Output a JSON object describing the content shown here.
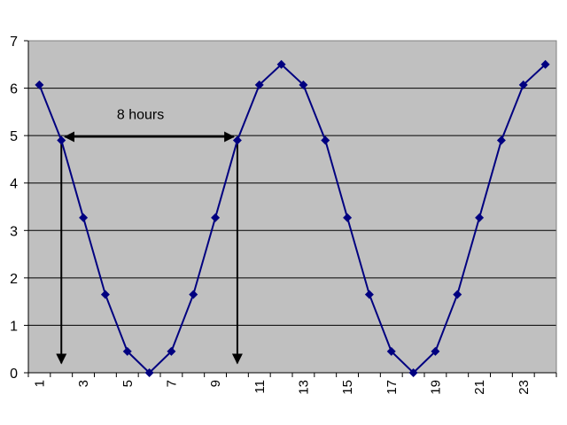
{
  "chart_data": {
    "type": "line",
    "title": "",
    "xlabel": "",
    "ylabel": "",
    "x": [
      1,
      2,
      3,
      4,
      5,
      6,
      7,
      8,
      9,
      10,
      11,
      12,
      13,
      14,
      15,
      16,
      17,
      18,
      19,
      20,
      21,
      22,
      23,
      24
    ],
    "series": [
      {
        "values": [
          6.07,
          4.9,
          3.27,
          1.65,
          0.45,
          0.0,
          0.45,
          1.65,
          3.27,
          4.9,
          6.07,
          6.5,
          6.07,
          4.9,
          3.27,
          1.65,
          0.45,
          0.0,
          0.45,
          1.65,
          3.27,
          4.9,
          6.07,
          6.5
        ]
      }
    ],
    "xlim": [
      0.5,
      24.5
    ],
    "ylim": [
      0,
      7
    ],
    "y_ticks": [
      "0",
      "1",
      "2",
      "3",
      "4",
      "5",
      "6",
      "7"
    ],
    "x_ticks": [
      "1",
      "3",
      "5",
      "7",
      "9",
      "11",
      "13",
      "15",
      "17",
      "19",
      "21",
      "23"
    ],
    "x_tick_values": [
      1,
      3,
      5,
      7,
      9,
      11,
      13,
      15,
      17,
      19,
      21,
      23
    ],
    "grid": "horizontal",
    "legend": "none",
    "annotation": {
      "text": "8 hours",
      "from_x": 2,
      "to_x": 10,
      "at_y": 4.9,
      "drop_arrows_x": [
        2,
        10
      ],
      "drop_arrow_to_y": 0.2
    },
    "colors": {
      "plot_background": "#c0c0c0",
      "line": "#000080",
      "marker": "#000080",
      "grid": "#000000",
      "annotation": "#000000"
    }
  }
}
